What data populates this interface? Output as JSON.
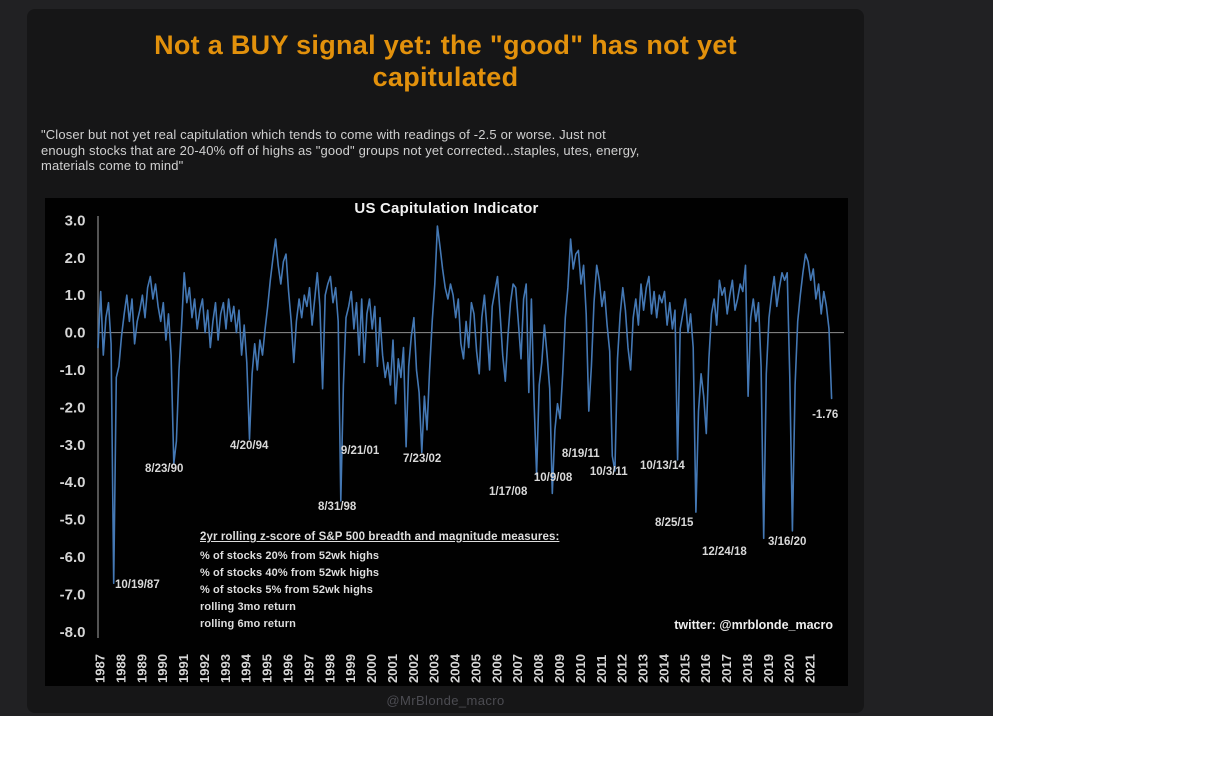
{
  "panel": {
    "outer_bg": "#212123",
    "card_bg": "#161617"
  },
  "headline": {
    "color": "#E2910C",
    "lines": [
      "Not a BUY signal yet: the \"good\" has not yet",
      "capitulated"
    ]
  },
  "quote": {
    "lines": [
      "\"Closer but not yet real capitulation which tends to come with readings of -2.5 or worse. Just not",
      "enough stocks that are 20-40% off of highs as \"good\" groups not yet corrected...staples, utes, energy,",
      "materials come to mind\""
    ]
  },
  "watermark": "@MrBlonde_macro",
  "chart_data": {
    "type": "line",
    "title": "US Capitulation Indicator",
    "credit": "twitter: @mrblonde_macro",
    "xlabel": "",
    "ylabel": "",
    "xlim": [
      1984.46,
      2022.91
    ],
    "ylim": [
      -9.45,
      3.6
    ],
    "grid": "zero-line-only",
    "legend_position": "lower-left-inside",
    "y_ticks": [
      3,
      2,
      1,
      0,
      -1,
      -2,
      -3,
      -4,
      -5,
      -6,
      -7,
      -8
    ],
    "x_ticks": [
      "1987",
      "1988",
      "1989",
      "1990",
      "1991",
      "1992",
      "1993",
      "1994",
      "1995",
      "1996",
      "1997",
      "1998",
      "1999",
      "2000",
      "2001",
      "2002",
      "2003",
      "2004",
      "2005",
      "2006",
      "2007",
      "2008",
      "2009",
      "2010",
      "2011",
      "2012",
      "2013",
      "2014",
      "2015",
      "2016",
      "2017",
      "2018",
      "2019",
      "2020",
      "2021"
    ],
    "legend": {
      "header": "2yr rolling z-score of S&P 500 breadth and magnitude measures:",
      "lines": [
        "% of stocks 20% from 52wk highs",
        "% of stocks 40% from 52wk highs",
        "% of stocks 5% from 52wk highs",
        "rolling 3mo return",
        "rolling 6mo return"
      ]
    },
    "current_reading": -1.76,
    "events": [
      {
        "date": "10/19/87",
        "z": -6.7
      },
      {
        "date": "8/23/90",
        "z": -3.5
      },
      {
        "date": "4/20/94",
        "z": -2.9
      },
      {
        "date": "8/31/98",
        "z": -4.5
      },
      {
        "date": "9/21/01",
        "z": -3.1
      },
      {
        "date": "7/23/02",
        "z": -3.2
      },
      {
        "date": "1/17/08",
        "z": -3.8
      },
      {
        "date": "10/9/08",
        "z": -4.3
      },
      {
        "date": "8/19/11",
        "z": -3.3
      },
      {
        "date": "10/3/11",
        "z": -3.7
      },
      {
        "date": "10/13/14",
        "z": -3.4
      },
      {
        "date": "8/25/15",
        "z": -4.8
      },
      {
        "date": "12/24/18",
        "z": -5.5
      },
      {
        "date": "3/16/20",
        "z": -5.3
      }
    ],
    "annotations": [
      {
        "label": "10/19/87",
        "x": 1987.81,
        "y": -6.83
      },
      {
        "label": "8/23/90",
        "x": 1989.25,
        "y": -3.73
      },
      {
        "label": "4/20/94",
        "x": 1993.32,
        "y": -3.11
      },
      {
        "label": "8/31/98",
        "x": 1997.53,
        "y": -4.74
      },
      {
        "label": "9/21/01",
        "x": 1998.63,
        "y": -3.25
      },
      {
        "label": "7/23/02",
        "x": 2001.6,
        "y": -3.46
      },
      {
        "label": "1/17/08",
        "x": 2005.72,
        "y": -4.34
      },
      {
        "label": "10/9/08",
        "x": 2007.87,
        "y": -3.97
      },
      {
        "label": "8/19/11",
        "x": 2009.21,
        "y": -3.32
      },
      {
        "label": "10/3/11",
        "x": 2010.55,
        "y": -3.81
      },
      {
        "label": "10/13/14",
        "x": 2012.95,
        "y": -3.65
      },
      {
        "label": "8/25/15",
        "x": 2013.67,
        "y": -5.17
      },
      {
        "label": "12/24/18",
        "x": 2015.92,
        "y": -5.95
      },
      {
        "label": "3/16/20",
        "x": 2019.08,
        "y": -5.68
      },
      {
        "label": "-1.76",
        "x": 2021.19,
        "y": -2.28
      }
    ],
    "series": [
      {
        "name": "US Capitulation Indicator (2yr rolling z-score composite)",
        "color": "#4478B4",
        "x_start": 1987.0,
        "x_step": 0.125,
        "values": [
          -0.4,
          1.1,
          -0.6,
          0.4,
          0.8,
          -0.3,
          -6.7,
          -1.2,
          -0.9,
          -0.1,
          0.5,
          1.0,
          0.3,
          0.9,
          -0.3,
          0.3,
          0.6,
          1.0,
          0.4,
          1.2,
          1.5,
          0.9,
          1.3,
          0.7,
          0.3,
          0.8,
          -0.2,
          0.5,
          -0.6,
          -3.5,
          -2.9,
          -1.0,
          0.2,
          1.6,
          0.8,
          1.2,
          0.4,
          0.9,
          0.1,
          0.6,
          0.9,
          0.0,
          0.6,
          -0.4,
          0.3,
          0.8,
          -0.2,
          0.5,
          0.8,
          0.1,
          0.9,
          0.3,
          0.7,
          0.0,
          0.6,
          -0.6,
          0.2,
          -0.8,
          -2.85,
          -1.1,
          -0.3,
          -1.0,
          -0.2,
          -0.6,
          0.1,
          0.7,
          1.4,
          2.0,
          2.5,
          1.8,
          1.3,
          1.9,
          2.1,
          1.1,
          0.3,
          -0.8,
          0.3,
          0.9,
          0.4,
          1.0,
          0.7,
          1.2,
          0.2,
          0.9,
          1.6,
          0.7,
          -1.5,
          1.0,
          1.3,
          1.5,
          0.8,
          1.2,
          0.3,
          -4.5,
          -1.4,
          0.4,
          0.7,
          1.1,
          0.1,
          0.8,
          -0.6,
          0.9,
          -0.8,
          0.5,
          0.9,
          0.1,
          0.7,
          -0.9,
          0.4,
          -0.6,
          -1.2,
          -0.8,
          -1.4,
          -0.2,
          -1.9,
          -0.7,
          -1.2,
          -0.4,
          -3.05,
          -0.9,
          -0.1,
          0.4,
          -1.0,
          -1.6,
          -3.2,
          -1.7,
          -2.6,
          -1.0,
          0.3,
          1.3,
          2.85,
          2.3,
          1.7,
          1.2,
          0.9,
          1.3,
          1.0,
          0.4,
          0.9,
          -0.3,
          -0.7,
          0.3,
          -0.4,
          0.8,
          0.5,
          -0.5,
          -1.1,
          0.4,
          1.0,
          0.1,
          -1.0,
          0.7,
          1.1,
          1.5,
          0.5,
          -0.6,
          -1.3,
          -0.1,
          0.8,
          1.3,
          1.2,
          0.3,
          -0.7,
          0.9,
          1.3,
          -1.6,
          0.9,
          -1.8,
          -3.8,
          -1.4,
          -0.8,
          0.2,
          -0.6,
          -1.5,
          -4.3,
          -2.6,
          -1.9,
          -2.3,
          -1.1,
          0.4,
          1.2,
          2.5,
          1.7,
          2.1,
          2.2,
          1.3,
          1.8,
          0.5,
          -2.1,
          -0.9,
          0.8,
          1.8,
          1.4,
          0.7,
          1.1,
          0.2,
          -0.5,
          -3.3,
          -3.7,
          -0.7,
          0.5,
          1.2,
          0.6,
          -0.4,
          -1.0,
          0.4,
          0.9,
          0.2,
          1.3,
          0.6,
          1.2,
          1.5,
          0.5,
          1.1,
          0.4,
          1.0,
          0.8,
          1.1,
          0.2,
          0.8,
          0.1,
          0.6,
          -3.4,
          0.1,
          0.5,
          0.9,
          0.0,
          0.5,
          -0.4,
          -4.8,
          -2.1,
          -1.1,
          -1.7,
          -2.7,
          -0.7,
          0.5,
          0.9,
          0.2,
          1.4,
          1.0,
          1.2,
          0.5,
          1.0,
          1.4,
          0.6,
          0.9,
          1.3,
          1.1,
          1.8,
          -1.7,
          0.4,
          0.9,
          0.3,
          0.8,
          -0.9,
          -5.5,
          -1.1,
          0.4,
          1.0,
          1.5,
          0.7,
          1.2,
          1.6,
          1.4,
          1.6,
          -1.2,
          -5.3,
          -1.4,
          0.3,
          1.0,
          1.6,
          2.1,
          1.9,
          1.4,
          1.7,
          0.9,
          1.3,
          0.5,
          1.1,
          0.7,
          0.1,
          -1.76
        ]
      }
    ]
  }
}
